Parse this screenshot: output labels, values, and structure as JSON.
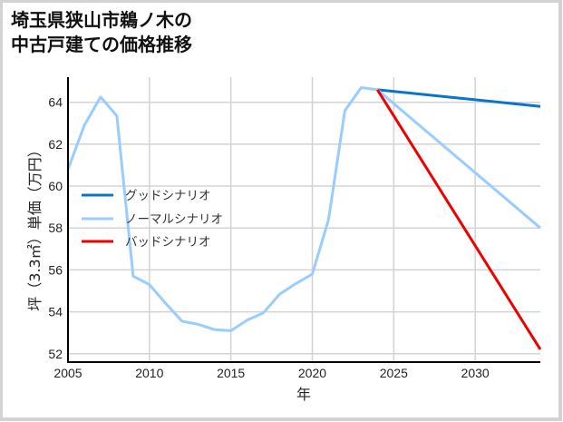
{
  "title": {
    "line1": "埼玉県狭山市鵜ノ木の",
    "line2": "中古戸建ての価格推移"
  },
  "colors": {
    "good": "#0a74c9",
    "normal": "#99ccff",
    "bad": "#ee0000",
    "grid": "#d3d3d3",
    "axis": "#000000"
  },
  "chart_data": {
    "type": "line",
    "title": "埼玉県狭山市鵜ノ木の中古戸建ての価格推移",
    "xlabel": "年",
    "ylabel": "坪（3.3㎡）単価（万円）",
    "xlim": [
      2005,
      2034
    ],
    "ylim": [
      51.6,
      65.2
    ],
    "xticks": [
      2005,
      2010,
      2015,
      2020,
      2025,
      2030
    ],
    "yticks": [
      52,
      54,
      56,
      58,
      60,
      62,
      64
    ],
    "grid": true,
    "legend_position": "upper-left (mid-left inside plot)",
    "series": [
      {
        "name": "グッドシナリオ",
        "color": "#0a74c9",
        "x": [
          2024,
          2034
        ],
        "values": [
          64.6,
          63.8
        ]
      },
      {
        "name": "ノーマルシナリオ",
        "color": "#99ccff",
        "x": [
          2005,
          2006,
          2007,
          2008,
          2009,
          2010,
          2011,
          2012,
          2013,
          2014,
          2015,
          2016,
          2017,
          2018,
          2019,
          2020,
          2021,
          2022,
          2023,
          2024,
          2034
        ],
        "values": [
          60.8,
          62.9,
          64.25,
          63.35,
          55.7,
          55.3,
          54.4,
          53.55,
          53.4,
          53.15,
          53.1,
          53.6,
          53.95,
          54.85,
          55.35,
          55.8,
          58.4,
          63.6,
          64.7,
          64.6,
          58.0
        ]
      },
      {
        "name": "バッドシナリオ",
        "color": "#ee0000",
        "x": [
          2024,
          2034
        ],
        "values": [
          64.6,
          52.2
        ]
      }
    ]
  }
}
